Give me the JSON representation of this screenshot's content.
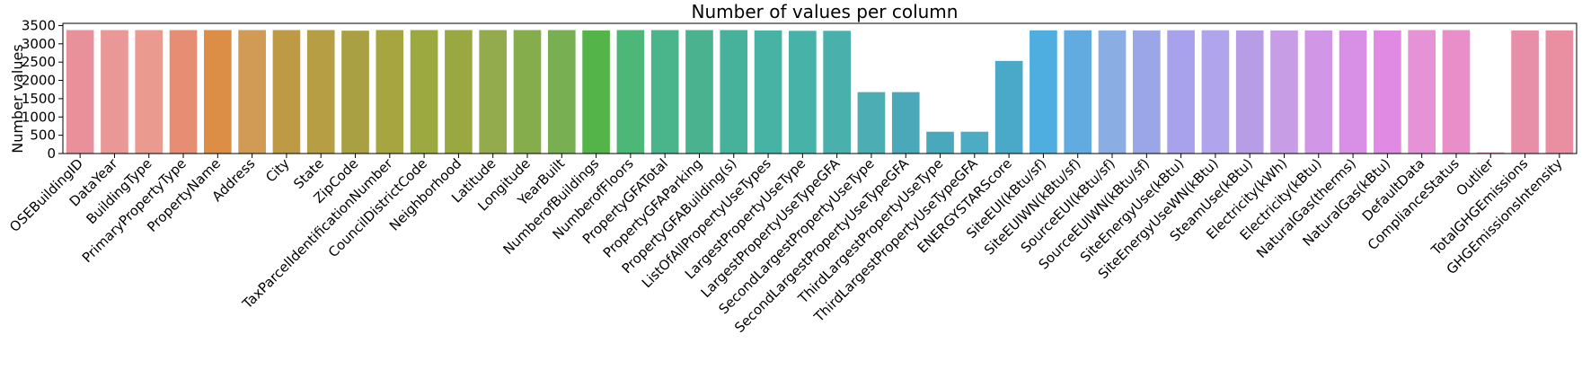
{
  "chart_data": {
    "type": "bar",
    "title": "Number of values per column",
    "xlabel": "",
    "ylabel": "Number values",
    "ylim": [
      0,
      3560
    ],
    "yticks": [
      0,
      500,
      1000,
      1500,
      2000,
      2500,
      3000,
      3500
    ],
    "grid": false,
    "categories": [
      "OSEBuildingID",
      "DataYear",
      "BuildingType",
      "PrimaryPropertyType",
      "PropertyName",
      "Address",
      "City",
      "State",
      "ZipCode",
      "TaxParcelIdentificationNumber",
      "CouncilDistrictCode",
      "Neighborhood",
      "Latitude",
      "Longitude",
      "YearBuilt",
      "NumberofBuildings",
      "NumberofFloors",
      "PropertyGFATotal",
      "PropertyGFAParking",
      "PropertyGFABuilding(s)",
      "ListOfAllPropertyUseTypes",
      "LargestPropertyUseType",
      "LargestPropertyUseTypeGFA",
      "SecondLargestPropertyUseType",
      "SecondLargestPropertyUseTypeGFA",
      "ThirdLargestPropertyUseType",
      "ThirdLargestPropertyUseTypeGFA",
      "ENERGYSTARScore",
      "SiteEUI(kBtu/sf)",
      "SiteEUIWN(kBtu/sf)",
      "SourceEUI(kBtu/sf)",
      "SourceEUIWN(kBtu/sf)",
      "SiteEnergyUse(kBtu)",
      "SiteEnergyUseWN(kBtu)",
      "SteamUse(kBtu)",
      "Electricity(kWh)",
      "Electricity(kBtu)",
      "NaturalGas(therms)",
      "NaturalGas(kBtu)",
      "DefaultData",
      "ComplianceStatus",
      "Outlier",
      "TotalGHGEmissions",
      "GHGEmissionsIntensity"
    ],
    "values": [
      3376,
      3376,
      3376,
      3376,
      3376,
      3376,
      3376,
      3376,
      3360,
      3376,
      3376,
      3376,
      3376,
      3376,
      3376,
      3368,
      3376,
      3376,
      3376,
      3376,
      3367,
      3356,
      3356,
      1679,
      1679,
      596,
      596,
      2533,
      3369,
      3370,
      3367,
      3367,
      3371,
      3371,
      3367,
      3367,
      3367,
      3367,
      3367,
      3376,
      3376,
      32,
      3367,
      3367
    ],
    "colors": [
      "#e8919b",
      "#e99897",
      "#ea9a8f",
      "#e58e74",
      "#dc8d46",
      "#d19a55",
      "#bf9a45",
      "#b59e44",
      "#a8a043",
      "#a7a53f",
      "#9ca940",
      "#9aa842",
      "#93ab4c",
      "#86ad4c",
      "#78af52",
      "#55b449",
      "#4db777",
      "#4ab58b",
      "#4ab28f",
      "#47b29b",
      "#47b3a4",
      "#46b2a8",
      "#49b0ac",
      "#4cadb3",
      "#4ba8b8",
      "#49a8bb",
      "#4bacc3",
      "#4aa9c9",
      "#4eaee0",
      "#62abe1",
      "#8aaee3",
      "#9aa6e6",
      "#a8a2ec",
      "#b0a4ec",
      "#b79de6",
      "#c79de5",
      "#d296e7",
      "#d890e7",
      "#e18ae3",
      "#e692d7",
      "#e88ec9",
      "#eb93b9",
      "#e78ea8",
      "#e98fa1"
    ]
  }
}
